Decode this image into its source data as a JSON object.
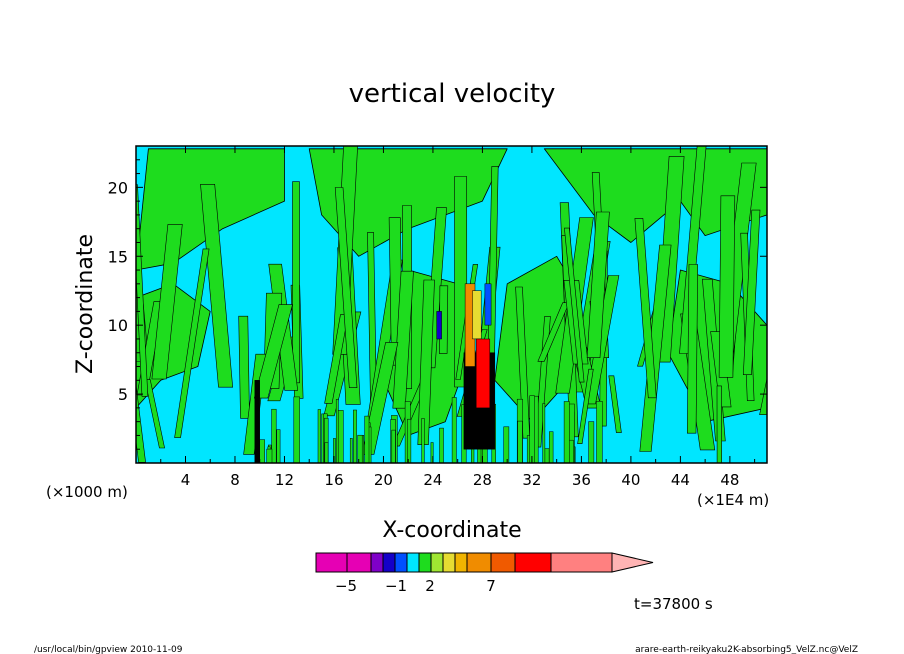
{
  "chart_data": {
    "type": "heatmap",
    "title": "vertical velocity",
    "xlabel": "X-coordinate",
    "ylabel": "Z-coordinate",
    "x_unit_left": "(×1000 m)",
    "x_unit_right": "(×1E4 m)",
    "xlim": [
      0,
      51
    ],
    "ylim": [
      0,
      23
    ],
    "x_ticks": [
      4,
      8,
      12,
      16,
      20,
      24,
      28,
      32,
      36,
      40,
      44,
      48
    ],
    "y_ticks": [
      5,
      10,
      15,
      20
    ],
    "colorbar": {
      "levels": [
        -7,
        -6,
        -5,
        -4,
        -3,
        -2,
        -1,
        0,
        1,
        2,
        3,
        4,
        5,
        6,
        7
      ],
      "tick_labels": [
        -5,
        -1,
        2,
        7
      ],
      "colors": [
        "#e600b4",
        "#e600b4",
        "#7f00c8",
        "#1400c8",
        "#0050ff",
        "#00e6ff",
        "#1edc1e",
        "#a0e632",
        "#e6dc32",
        "#f0b400",
        "#f08c00",
        "#f05a00",
        "#ff0000",
        "#ff8080",
        "#ffb4b4"
      ]
    },
    "background_color": "#00e6ff",
    "positive_band_color": "#1edc1e",
    "annotation": "t=37800 s"
  },
  "footer": {
    "left": "/usr/local/bin/gpview  2010-11-09",
    "right": "arare-earth-reikyaku2K-absorbing5_VelZ.nc@VelZ"
  }
}
